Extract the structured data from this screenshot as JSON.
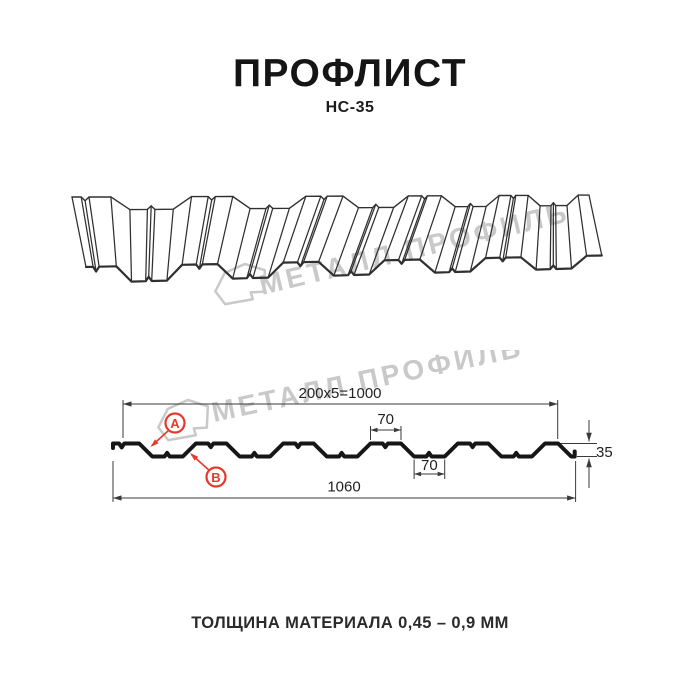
{
  "header": {
    "title": "ПРОФЛИСТ",
    "subtitle": "НС-35"
  },
  "watermark": {
    "text": "МЕТАЛЛ ПРОФИЛЬ",
    "color": "#c9c9c9"
  },
  "section": {
    "dim_coverage": "200x5=1000",
    "dim_crest_width": "70",
    "dim_valley_width": "70",
    "dim_overall_width": "1060",
    "dim_height": "35",
    "callout_a": "A",
    "callout_b": "B",
    "accent_color": "#e8382e"
  },
  "footer": {
    "text": "ТОЛЩИНА МАТЕРИАЛА 0,45 – 0,9 ММ"
  }
}
